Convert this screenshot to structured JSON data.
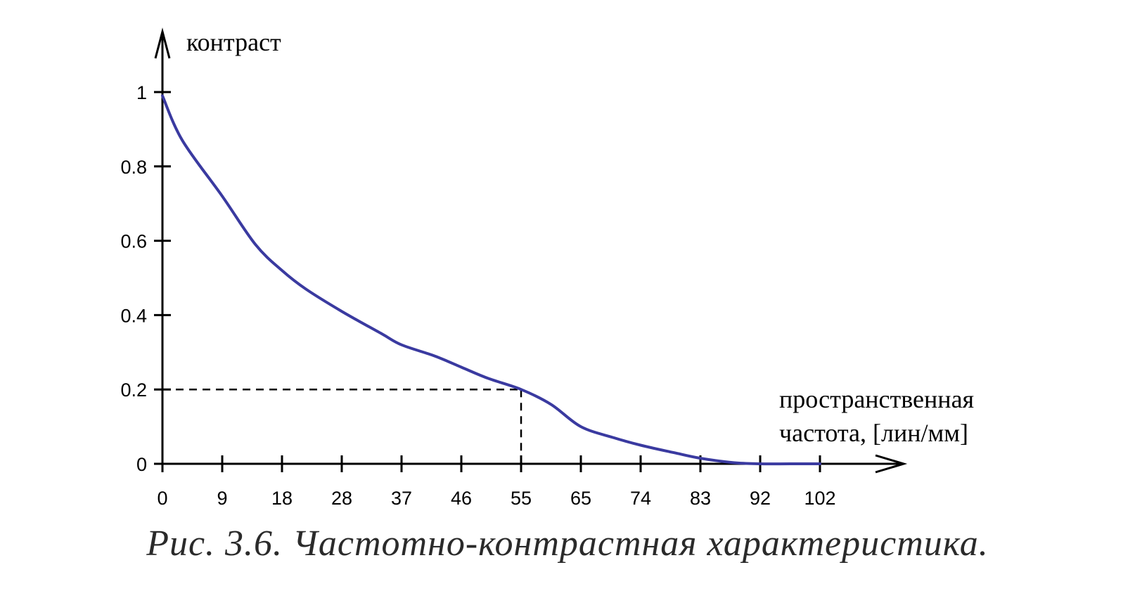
{
  "chart_data": {
    "type": "line",
    "ylabel": "контраст",
    "xlabel_lines": [
      "пространственная",
      "частота, [лин/мм]"
    ],
    "caption": "Рис. 3.6. Частотно-контрастная характеристика.",
    "x_ticks": [
      "0",
      "9",
      "18",
      "28",
      "37",
      "46",
      "55",
      "65",
      "74",
      "83",
      "92",
      "102"
    ],
    "y_ticks": [
      "0",
      "0.2",
      "0.4",
      "0.6",
      "0.8",
      "1"
    ],
    "y_tick_values": [
      0,
      0.2,
      0.4,
      0.6,
      0.8,
      1
    ],
    "ylim": [
      0,
      1
    ],
    "series": [
      {
        "x": [
          0,
          3,
          9,
          14,
          18,
          22,
          28,
          34,
          37,
          42,
          46,
          50,
          55,
          60,
          65,
          70,
          74,
          79,
          83,
          88,
          92,
          97,
          102
        ],
        "values": [
          0.99,
          0.87,
          0.72,
          0.59,
          0.52,
          0.47,
          0.41,
          0.35,
          0.32,
          0.29,
          0.26,
          0.23,
          0.2,
          0.16,
          0.1,
          0.07,
          0.05,
          0.03,
          0.015,
          0.003,
          0.0,
          0.0,
          0.0
        ]
      }
    ],
    "reference": {
      "x": 55,
      "y": 0.2
    },
    "line_color": "#3a3aa0",
    "axis_color": "#000000"
  }
}
